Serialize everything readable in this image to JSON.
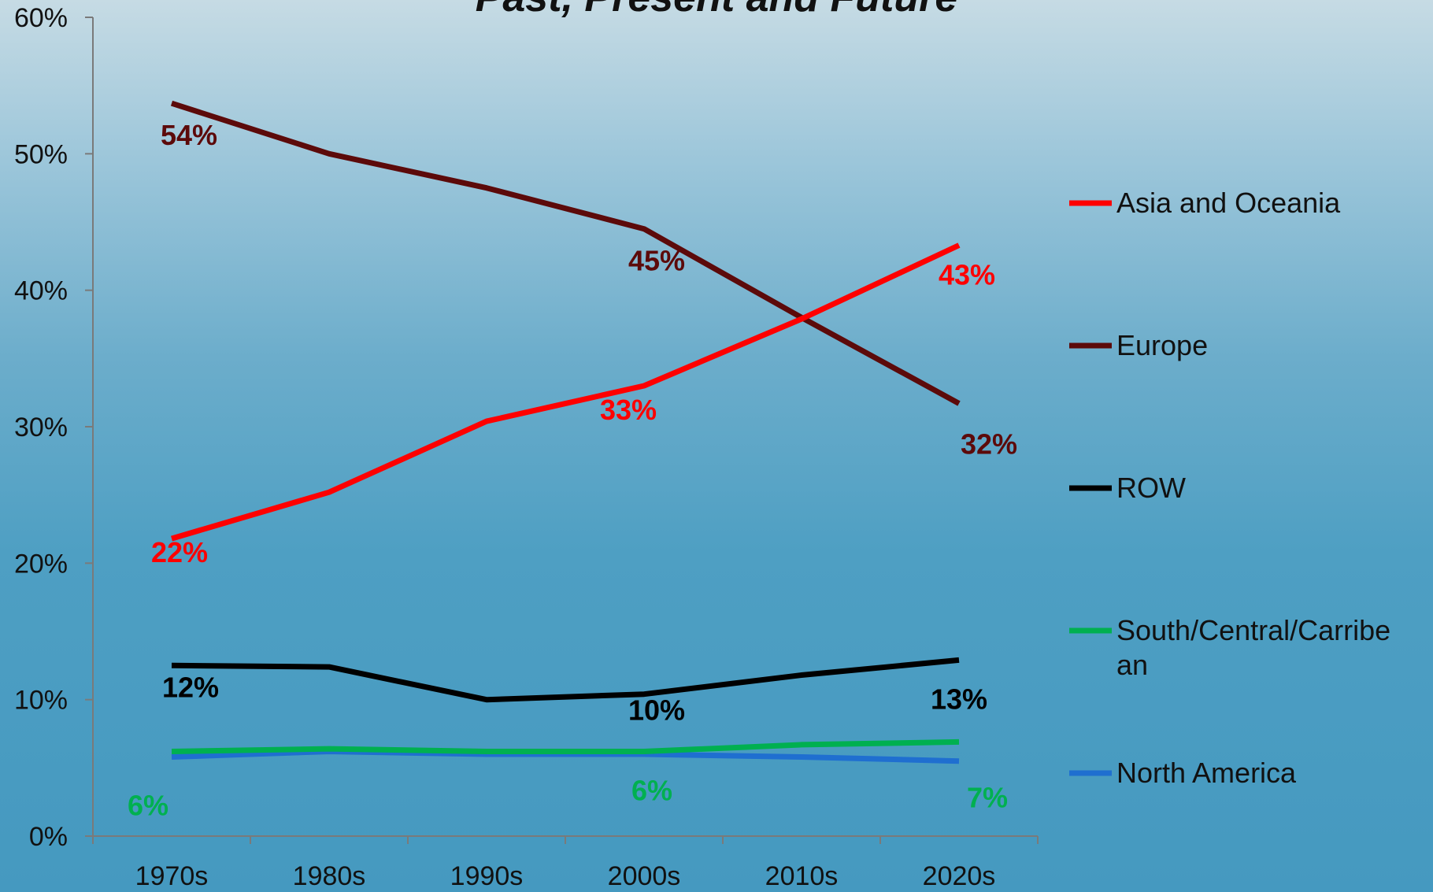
{
  "chart_data": {
    "type": "line",
    "title": "Past, Present and Future",
    "categories": [
      "1970s",
      "1980s",
      "1990s",
      "2000s",
      "2010s",
      "2020s"
    ],
    "ylim": [
      0,
      60
    ],
    "yticks": [
      "0%",
      "10%",
      "20%",
      "30%",
      "40%",
      "50%",
      "60%"
    ],
    "grid": false,
    "legend_position": "right",
    "series": [
      {
        "name": "Asia and Oceania",
        "color": "#ff0000",
        "values": [
          21.8,
          25.2,
          30.4,
          33.0,
          37.9,
          43.3
        ],
        "labels": [
          {
            "index": 0,
            "text": "22%"
          },
          {
            "index": 3,
            "text": "33%"
          },
          {
            "index": 5,
            "text": "43%"
          }
        ]
      },
      {
        "name": "Europe",
        "color": "#5c0a0a",
        "values": [
          53.7,
          50.0,
          47.5,
          44.5,
          38.0,
          31.7
        ],
        "labels": [
          {
            "index": 0,
            "text": "54%"
          },
          {
            "index": 3,
            "text": "45%"
          },
          {
            "index": 5,
            "text": "32%"
          }
        ]
      },
      {
        "name": "ROW",
        "color": "#000000",
        "values": [
          12.5,
          12.4,
          10.0,
          10.4,
          11.8,
          12.9
        ],
        "labels": [
          {
            "index": 0,
            "text": "12%"
          },
          {
            "index": 3,
            "text": "10%"
          },
          {
            "index": 5,
            "text": "13%"
          }
        ]
      },
      {
        "name": "South/Central/Carribean",
        "color": "#00b050",
        "values": [
          6.2,
          6.4,
          6.2,
          6.2,
          6.7,
          6.9
        ],
        "labels": [
          {
            "index": 0,
            "text": "6%"
          },
          {
            "index": 3,
            "text": "6%"
          },
          {
            "index": 5,
            "text": "7%"
          }
        ]
      },
      {
        "name": "North America",
        "color": "#1f6fd0",
        "values": [
          5.8,
          6.2,
          6.0,
          6.0,
          5.8,
          5.5
        ],
        "labels": []
      }
    ]
  }
}
